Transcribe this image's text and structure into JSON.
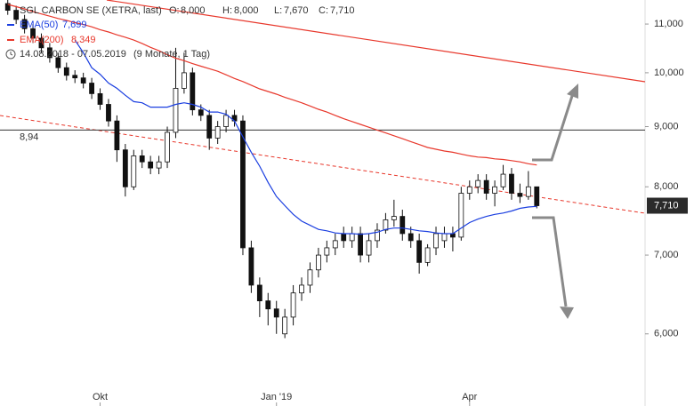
{
  "chart_data": {
    "type": "candlestick",
    "title": "SGL CARBON SE (XETRA, last)",
    "quote": [
      {
        "name": "O:",
        "label": "8,000"
      },
      {
        "name": "H:",
        "label": "8,000"
      },
      {
        "name": "L:",
        "label": "7,670"
      },
      {
        "name": "C:",
        "label": "7,710"
      }
    ],
    "period": "14.08.2018 - 07.05.2019",
    "period_note": "(9 Monate, 1 Tag)",
    "categories": [
      null,
      null,
      null,
      null,
      null,
      null,
      null,
      null,
      null,
      null,
      null,
      "Okt",
      null,
      null,
      null,
      null,
      null,
      null,
      null,
      null,
      null,
      null,
      null,
      null,
      null,
      null,
      null,
      null,
      null,
      null,
      null,
      null,
      "Jan '19",
      null,
      null,
      null,
      null,
      null,
      null,
      null,
      null,
      null,
      null,
      null,
      null,
      null,
      null,
      null,
      null,
      null,
      null,
      null,
      null,
      null,
      null,
      "Apr",
      null,
      null,
      null,
      null,
      null,
      null,
      null,
      null
    ],
    "open": [
      11.45,
      11.3,
      11.1,
      10.9,
      10.7,
      10.5,
      10.3,
      10.1,
      9.95,
      9.9,
      9.8,
      9.6,
      9.4,
      9.1,
      8.6,
      8.0,
      8.5,
      8.4,
      8.3,
      8.4,
      8.9,
      9.7,
      10.0,
      9.3,
      9.2,
      8.8,
      9.0,
      9.2,
      9.1,
      7.1,
      6.6,
      6.4,
      6.3,
      6.0,
      6.2,
      6.5,
      6.6,
      6.8,
      7.0,
      7.1,
      7.3,
      7.2,
      7.3,
      7.0,
      7.2,
      7.35,
      7.5,
      7.55,
      7.3,
      7.2,
      6.9,
      7.1,
      7.2,
      7.3,
      7.25,
      7.9,
      8.0,
      8.1,
      7.9,
      8.0,
      8.2,
      7.9,
      7.85,
      8.0
    ],
    "high": [
      11.55,
      11.4,
      11.2,
      11.0,
      10.8,
      10.6,
      10.4,
      10.2,
      10.05,
      10.0,
      9.9,
      9.7,
      9.5,
      9.2,
      8.7,
      8.6,
      8.6,
      8.5,
      8.5,
      9.0,
      10.5,
      10.4,
      10.1,
      9.4,
      9.3,
      9.1,
      9.3,
      9.3,
      9.2,
      7.2,
      6.7,
      6.5,
      6.4,
      6.3,
      6.6,
      6.7,
      6.9,
      7.1,
      7.2,
      7.3,
      7.4,
      7.4,
      7.4,
      7.3,
      7.45,
      7.6,
      7.8,
      7.65,
      7.4,
      7.3,
      7.15,
      7.4,
      7.4,
      7.4,
      8.0,
      8.1,
      8.2,
      8.2,
      8.1,
      8.35,
      8.3,
      8.05,
      8.25,
      8.0
    ],
    "low": [
      11.2,
      11.0,
      10.8,
      10.6,
      10.4,
      10.2,
      10.0,
      9.85,
      9.8,
      9.7,
      9.5,
      9.3,
      9.0,
      8.4,
      7.85,
      7.95,
      8.3,
      8.2,
      8.2,
      8.3,
      8.8,
      9.6,
      9.2,
      9.1,
      8.6,
      8.7,
      8.9,
      9.0,
      7.0,
      6.5,
      6.2,
      6.1,
      6.0,
      5.95,
      6.1,
      6.4,
      6.5,
      6.7,
      6.9,
      7.0,
      7.1,
      7.1,
      6.9,
      6.9,
      7.1,
      7.3,
      7.4,
      7.2,
      7.1,
      6.75,
      6.85,
      7.0,
      7.1,
      7.05,
      7.2,
      7.8,
      7.9,
      7.8,
      7.7,
      7.95,
      7.8,
      7.75,
      7.8,
      7.67
    ],
    "close": [
      11.3,
      11.1,
      10.9,
      10.7,
      10.5,
      10.3,
      10.1,
      9.95,
      9.9,
      9.8,
      9.6,
      9.4,
      9.1,
      8.6,
      8.0,
      8.5,
      8.4,
      8.3,
      8.4,
      8.9,
      9.7,
      10.0,
      9.3,
      9.2,
      8.8,
      9.0,
      9.2,
      9.1,
      7.1,
      6.6,
      6.4,
      6.3,
      6.2,
      6.2,
      6.5,
      6.6,
      6.8,
      7.0,
      7.1,
      7.2,
      7.2,
      7.3,
      7.0,
      7.2,
      7.35,
      7.5,
      7.55,
      7.3,
      7.2,
      6.9,
      7.1,
      7.3,
      7.3,
      7.25,
      7.9,
      8.0,
      8.1,
      7.9,
      8.0,
      8.2,
      7.9,
      7.85,
      8.0,
      7.71
    ],
    "series": [
      {
        "name": "EMA(50)",
        "color": "#1a3ee0",
        "value_label": "7,699",
        "values": [
          null,
          null,
          null,
          null,
          null,
          null,
          null,
          null,
          10.66,
          10.4,
          10.1,
          9.97,
          9.8,
          9.7,
          9.57,
          9.45,
          9.43,
          9.35,
          9.35,
          9.35,
          9.4,
          9.43,
          9.4,
          9.35,
          9.26,
          9.26,
          9.22,
          9.1,
          8.82,
          8.56,
          8.33,
          8.07,
          7.85,
          7.71,
          7.58,
          7.48,
          7.42,
          7.36,
          7.34,
          7.31,
          7.3,
          7.3,
          7.29,
          7.3,
          7.32,
          7.36,
          7.38,
          7.38,
          7.36,
          7.34,
          7.33,
          7.31,
          7.3,
          7.3,
          7.38,
          7.46,
          7.51,
          7.55,
          7.58,
          7.6,
          7.63,
          7.67,
          7.69,
          7.699
        ]
      },
      {
        "name": "EMA(200)",
        "color": "#e8382c",
        "value_label": "8,349",
        "values": [
          11.43,
          11.38,
          11.33,
          11.27,
          11.22,
          11.17,
          11.12,
          11.08,
          11.03,
          10.99,
          10.94,
          10.88,
          10.83,
          10.77,
          10.72,
          10.66,
          10.59,
          10.51,
          10.44,
          10.36,
          10.29,
          10.24,
          10.18,
          10.13,
          10.08,
          10.03,
          9.96,
          9.89,
          9.83,
          9.76,
          9.69,
          9.64,
          9.59,
          9.53,
          9.48,
          9.43,
          9.37,
          9.31,
          9.26,
          9.2,
          9.14,
          9.09,
          9.04,
          8.99,
          8.94,
          8.89,
          8.84,
          8.79,
          8.74,
          8.69,
          8.64,
          8.61,
          8.58,
          8.56,
          8.53,
          8.5,
          8.48,
          8.47,
          8.45,
          8.44,
          8.42,
          8.4,
          8.37,
          8.349
        ]
      }
    ],
    "ylim": [
      5.21,
      11.53
    ],
    "log_scale": true,
    "yticks": [
      {
        "value": 6,
        "label": "6,000"
      },
      {
        "value": 7,
        "label": "7,000"
      },
      {
        "value": 8,
        "label": "8,000"
      },
      {
        "value": 9,
        "label": "9,000"
      },
      {
        "value": 10,
        "label": "10,000"
      },
      {
        "value": 11,
        "label": "11,000"
      }
    ],
    "reference_line": {
      "value": 8.94,
      "label": "8,94"
    },
    "last_label": {
      "value": 7.71,
      "label": "7,710"
    }
  }
}
